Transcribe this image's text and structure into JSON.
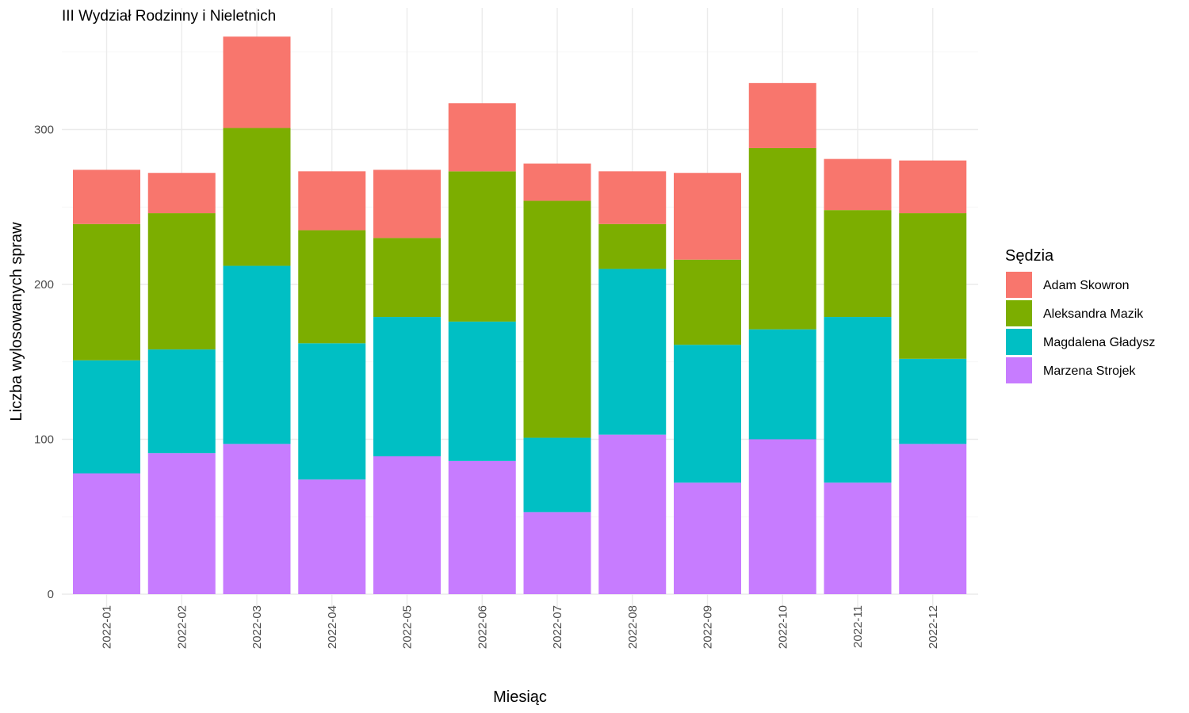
{
  "chart_data": {
    "type": "bar",
    "stacked": true,
    "title": "III Wydział Rodzinny i Nieletnich",
    "xlabel": "Miesiąc",
    "ylabel": "Liczba wylosowanych spraw",
    "ylim": [
      0,
      375
    ],
    "yticks": [
      0,
      100,
      200,
      300
    ],
    "grid": true,
    "legend_title": "Sędzia",
    "legend_position": "right",
    "categories": [
      "2022-01",
      "2022-02",
      "2022-03",
      "2022-04",
      "2022-05",
      "2022-06",
      "2022-07",
      "2022-08",
      "2022-09",
      "2022-10",
      "2022-11",
      "2022-12"
    ],
    "stack_order": [
      "Marzena Strojek",
      "Magdalena Gładysz",
      "Aleksandra Mazik",
      "Adam Skowron"
    ],
    "series": [
      {
        "name": "Adam Skowron",
        "color": "#F8766D",
        "values": [
          35,
          26,
          59,
          38,
          44,
          44,
          24,
          34,
          56,
          42,
          33,
          34
        ]
      },
      {
        "name": "Aleksandra Mazik",
        "color": "#7CAE00",
        "values": [
          88,
          88,
          89,
          73,
          51,
          97,
          153,
          29,
          55,
          117,
          69,
          94
        ]
      },
      {
        "name": "Magdalena Gładysz",
        "color": "#00BFC4",
        "values": [
          73,
          67,
          115,
          88,
          90,
          90,
          48,
          107,
          89,
          71,
          107,
          55
        ]
      },
      {
        "name": "Marzena Strojek",
        "color": "#C77CFF",
        "values": [
          78,
          91,
          97,
          74,
          89,
          86,
          53,
          103,
          72,
          100,
          72,
          97
        ]
      }
    ]
  }
}
